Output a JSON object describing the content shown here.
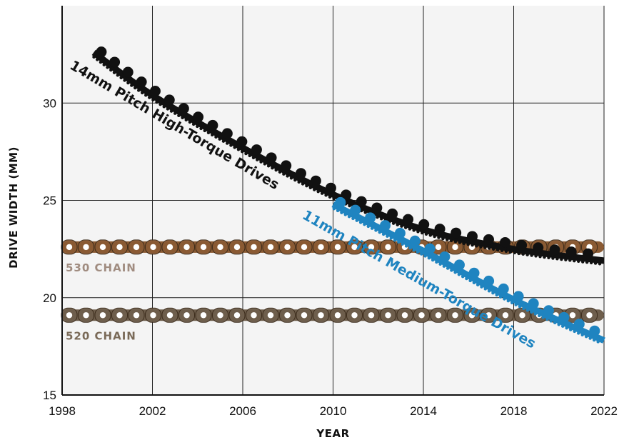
{
  "chart_data": {
    "type": "line",
    "title": "",
    "xlabel": "YEAR",
    "ylabel": "DRIVE WIDTH (MM)",
    "xlim": [
      1998,
      2022
    ],
    "ylim": [
      15,
      35
    ],
    "xticks": [
      "1998",
      "2002",
      "2006",
      "2010",
      "2014",
      "2018",
      "2022"
    ],
    "yticks": [
      "15",
      "20",
      "25",
      "30"
    ],
    "grid": true,
    "series": [
      {
        "name": "14mm Pitch High-Torque Drives",
        "color": "#111111",
        "style": "toothed-belt",
        "points": [
          [
            1999.4,
            32.6
          ],
          [
            2002,
            30.4
          ],
          [
            2006,
            27.7
          ],
          [
            2010,
            25.3
          ],
          [
            2014,
            23.5
          ],
          [
            2018,
            22.5
          ],
          [
            2022,
            21.9
          ]
        ]
      },
      {
        "name": "11mm Pitch Medium-Torque Drives",
        "color": "#1f84c0",
        "style": "toothed-belt",
        "points": [
          [
            2010,
            24.8
          ],
          [
            2014,
            22.4
          ],
          [
            2018,
            19.9
          ],
          [
            2022,
            17.8
          ]
        ]
      },
      {
        "name": "530 CHAIN",
        "color": "#8a5a33",
        "label_color": "#a08c80",
        "style": "chain",
        "points": [
          [
            1998,
            22.6
          ],
          [
            2022,
            22.6
          ]
        ]
      },
      {
        "name": "520 CHAIN",
        "color": "#6e5e4c",
        "label_color": "#7a6a58",
        "style": "chain",
        "points": [
          [
            1998,
            19.1
          ],
          [
            2022,
            19.1
          ]
        ]
      }
    ]
  }
}
